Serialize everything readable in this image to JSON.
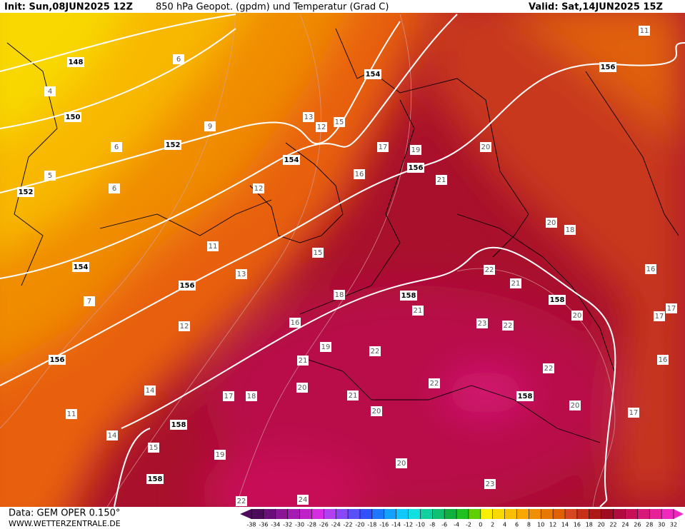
{
  "header": {
    "init": "Init: Sun,08JUN2025 12Z",
    "title": "850 hPa Geopot. (gpdm) und Temperatur (Grad C)",
    "valid": "Valid: Sat,14JUN2025 15Z"
  },
  "footer": {
    "source": "Data: GEM OPER 0.150°",
    "site": "WWW.WETTERZENTRALE.DE"
  },
  "geopotential_labels": [
    148,
    150,
    152,
    152,
    154,
    154,
    156,
    156,
    154,
    156,
    156,
    158,
    158,
    158,
    158,
    158
  ],
  "temperature_labels": [
    6,
    4,
    9,
    6,
    5,
    6,
    12,
    11,
    13,
    7,
    12,
    14,
    11,
    14,
    15,
    19,
    12,
    13,
    17,
    16,
    19,
    21,
    20,
    20,
    18,
    22,
    21,
    21,
    23,
    22,
    20,
    17,
    16,
    16,
    22,
    20,
    17,
    21,
    19,
    22,
    20,
    22,
    21,
    20,
    20,
    23,
    24,
    22,
    15,
    15,
    18,
    16,
    17,
    18,
    17,
    11
  ],
  "legend": {
    "labels": [
      -38,
      -36,
      -34,
      -32,
      -30,
      -28,
      -26,
      -24,
      -22,
      -20,
      -18,
      -16,
      -14,
      -12,
      -10,
      -8,
      -6,
      -4,
      -2,
      0,
      2,
      4,
      6,
      8,
      10,
      12,
      14,
      16,
      18,
      20,
      22,
      24,
      26,
      28,
      30,
      32
    ],
    "colors": [
      "#4b0a5a",
      "#6a0f7a",
      "#8a1596",
      "#a61cb2",
      "#c020c8",
      "#d42ee0",
      "#b040f0",
      "#8848f8",
      "#5a50fa",
      "#3050ff",
      "#1e78ff",
      "#14a0ff",
      "#10c8ff",
      "#10e0e0",
      "#10d0a0",
      "#10c070",
      "#10b040",
      "#20c020",
      "#60d000",
      "#f8f000",
      "#f8d800",
      "#f8c000",
      "#f8a800",
      "#f09000",
      "#e87800",
      "#e06000",
      "#d84820",
      "#c83018",
      "#b01818",
      "#a00c20",
      "#b00c40",
      "#c81058",
      "#d81878",
      "#e82098",
      "#f028c0"
    ]
  }
}
